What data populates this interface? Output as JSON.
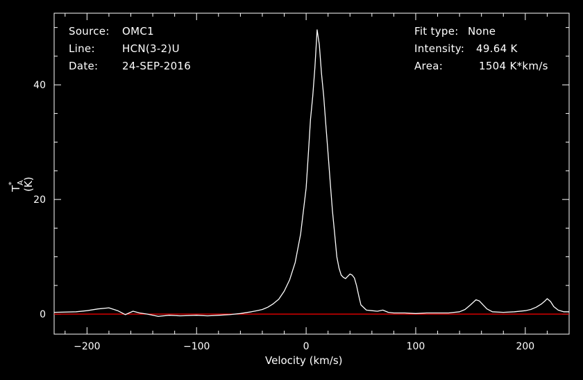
{
  "chart_data": {
    "type": "line",
    "header_left": [
      {
        "key": "Source:",
        "value": "OMC1"
      },
      {
        "key": "Line:",
        "value": "HCN(3-2)U"
      },
      {
        "key": "Date:",
        "value": "24-SEP-2016"
      }
    ],
    "header_right": [
      {
        "key": "Fit type:",
        "value": "None"
      },
      {
        "key": "Intensity:",
        "value": "49.64 K"
      },
      {
        "key": "Area:",
        "value": "1504 K*km/s"
      }
    ],
    "ylabel": "T*A (K)",
    "ylabel_main": "T",
    "ylabel_sup": "*",
    "ylabel_sub": "A",
    "ylabel_unit": "(K)",
    "xlabel": "Velocity (km/s)",
    "xlim": [
      -230,
      240
    ],
    "ylim": [
      -3.5,
      52.5
    ],
    "x_ticks": [
      -200,
      -100,
      0,
      100,
      200
    ],
    "x_tick_labels": [
      "−200",
      "−100",
      "0",
      "100",
      "200"
    ],
    "y_ticks": [
      0,
      20,
      40
    ],
    "y_tick_labels": [
      "0",
      "20",
      "40"
    ],
    "series": [
      {
        "color": "#ffffff",
        "x": [
          -230,
          -210,
          -200,
          -190,
          -180,
          -172,
          -165,
          -158,
          -152,
          -145,
          -135,
          -125,
          -115,
          -100,
          -90,
          -80,
          -70,
          -60,
          -50,
          -45,
          -40,
          -35,
          -30,
          -25,
          -20,
          -15,
          -10,
          -5,
          0,
          2,
          4,
          6,
          8,
          10,
          12,
          14,
          16,
          18,
          20,
          22,
          24,
          26,
          28,
          30,
          32,
          34,
          36,
          38,
          40,
          42,
          44,
          46,
          48,
          50,
          55,
          60,
          65,
          70,
          75,
          80,
          90,
          100,
          110,
          120,
          130,
          140,
          145,
          150,
          155,
          158,
          162,
          165,
          170,
          180,
          190,
          200,
          205,
          210,
          215,
          218,
          220,
          223,
          226,
          230,
          235,
          240
        ],
        "y": [
          0.3,
          0.4,
          0.6,
          0.9,
          1.1,
          0.6,
          -0.1,
          0.5,
          0.2,
          0.0,
          -0.4,
          -0.2,
          -0.3,
          -0.2,
          -0.3,
          -0.2,
          -0.1,
          0.1,
          0.4,
          0.6,
          0.8,
          1.2,
          1.8,
          2.6,
          4.0,
          6.0,
          9.0,
          14.0,
          22.0,
          28.0,
          34.0,
          38.0,
          43.0,
          49.6,
          47.0,
          42.0,
          38.0,
          33.0,
          28.0,
          23.0,
          18.0,
          14.0,
          10.0,
          8.0,
          6.8,
          6.4,
          6.2,
          6.6,
          7.0,
          6.8,
          6.3,
          5.0,
          3.2,
          1.6,
          0.7,
          0.6,
          0.5,
          0.7,
          0.3,
          0.2,
          0.2,
          0.1,
          0.2,
          0.2,
          0.2,
          0.4,
          0.8,
          1.6,
          2.5,
          2.3,
          1.5,
          0.9,
          0.4,
          0.3,
          0.4,
          0.6,
          0.8,
          1.2,
          1.8,
          2.3,
          2.7,
          2.2,
          1.3,
          0.7,
          0.4,
          0.4
        ]
      }
    ],
    "baseline": {
      "y": 0,
      "color": "#ff0000"
    },
    "axis_color": "#ffffff",
    "grid": false
  }
}
